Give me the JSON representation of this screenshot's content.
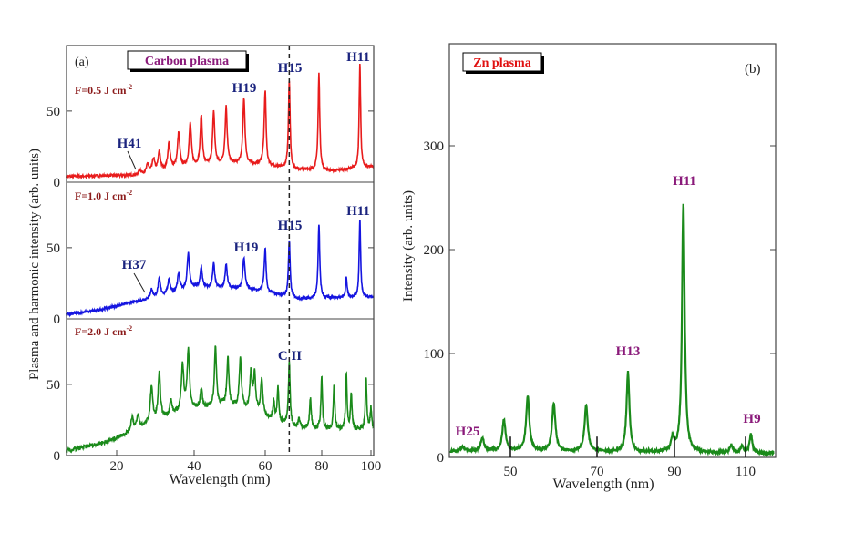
{
  "chart_data": [
    {
      "type": "line",
      "panel": "(a)",
      "title": "Carbon plasma",
      "xlabel": "Wavelength (nm)",
      "ylabel": "Plasma and harmonic intensity (arb. units)",
      "x_ticks": [
        20,
        40,
        60,
        80,
        100
      ],
      "y_ticks": [
        0,
        50
      ],
      "xlim": [
        7,
        101
      ],
      "ylim": [
        0,
        96
      ],
      "reference_line": {
        "x": 68.5,
        "style": "dashed"
      },
      "series": [
        {
          "name": "F=0.5 J cm-2",
          "label": "F=0.5 J cm",
          "sup": "-2",
          "color": "#e81c1c",
          "baseline": [
            [
              7,
              4
            ],
            [
              25,
              5
            ],
            [
              35,
              10
            ],
            [
              50,
              13
            ],
            [
              60,
              12
            ],
            [
              70,
              9
            ],
            [
              85,
              8
            ],
            [
              101,
              11
            ]
          ],
          "peaks": [
            [
              26,
              3
            ],
            [
              28,
              6
            ],
            [
              29.5,
              9
            ],
            [
              31,
              13
            ],
            [
              33.5,
              18
            ],
            [
              36,
              24
            ],
            [
              39,
              30
            ],
            [
              42,
              35
            ],
            [
              45.5,
              37
            ],
            [
              49,
              40
            ],
            [
              54,
              46
            ],
            [
              60,
              52
            ],
            [
              68.5,
              62
            ],
            [
              79,
              68
            ],
            [
              95.5,
              73
            ]
          ],
          "annotations": [
            {
              "text": "H41",
              "x": 25,
              "y": 6,
              "arrow": true
            },
            {
              "text": "H19",
              "x": 54
            },
            {
              "text": "H15",
              "x": 68.5
            },
            {
              "text": "H11",
              "x": 95.5
            }
          ]
        },
        {
          "name": "F=1.0 J cm-2",
          "label": "F=1.0 J cm",
          "sup": "-2",
          "color": "#1515e0",
          "baseline": [
            [
              7,
              3
            ],
            [
              15,
              6
            ],
            [
              28,
              14
            ],
            [
              40,
              22
            ],
            [
              55,
              21
            ],
            [
              62,
              18
            ],
            [
              72,
              14
            ],
            [
              85,
              15
            ],
            [
              101,
              15
            ]
          ],
          "peaks": [
            [
              29,
              6
            ],
            [
              31,
              12
            ],
            [
              33.5,
              10
            ],
            [
              36,
              12
            ],
            [
              38.5,
              25
            ],
            [
              42,
              14
            ],
            [
              45.5,
              17
            ],
            [
              49,
              17
            ],
            [
              54,
              22
            ],
            [
              60,
              30
            ],
            [
              68.5,
              40
            ],
            [
              79,
              52
            ],
            [
              90,
              14
            ],
            [
              95.5,
              55
            ]
          ],
          "annotations": [
            {
              "text": "H37",
              "x": 27,
              "y": 13,
              "arrow": true
            },
            {
              "text": "H19",
              "x": 54
            },
            {
              "text": "H15",
              "x": 68.5
            },
            {
              "text": "H11",
              "x": 95.5
            }
          ]
        },
        {
          "name": "F=2.0 J cm-2",
          "label": "F=2.0 J cm",
          "sup": "-2",
          "color": "#1a8a1a",
          "baseline": [
            [
              7,
              3
            ],
            [
              18,
              10
            ],
            [
              28,
              22
            ],
            [
              38,
              32
            ],
            [
              48,
              35
            ],
            [
              56,
              32
            ],
            [
              62,
              25
            ],
            [
              70,
              20
            ],
            [
              80,
              18
            ],
            [
              101,
              18
            ]
          ],
          "peaks": [
            [
              24,
              10
            ],
            [
              25.5,
              9
            ],
            [
              29,
              26
            ],
            [
              31,
              32
            ],
            [
              34,
              10
            ],
            [
              37,
              33
            ],
            [
              38.5,
              42
            ],
            [
              42,
              13
            ],
            [
              46,
              41
            ],
            [
              49.5,
              34
            ],
            [
              53,
              36
            ],
            [
              56,
              26
            ],
            [
              57,
              25
            ],
            [
              59,
              25
            ],
            [
              63,
              14
            ],
            [
              64.5,
              24
            ],
            [
              68.5,
              44
            ],
            [
              72,
              6
            ],
            [
              76,
              21
            ],
            [
              80,
              36
            ],
            [
              85,
              32
            ],
            [
              90,
              38
            ],
            [
              92,
              25
            ],
            [
              98,
              37
            ],
            [
              100,
              15
            ]
          ],
          "annotations": [
            {
              "text": "C II",
              "x": 68.5
            }
          ]
        }
      ]
    },
    {
      "type": "line",
      "panel": "(b)",
      "title": "Zn plasma",
      "xlabel": "Wavelength (nm)",
      "ylabel": "Intensity (arb. units)",
      "x_ticks": [
        50,
        70,
        90,
        110
      ],
      "y_ticks": [
        0,
        100,
        200,
        300
      ],
      "xlim": [
        36,
        118
      ],
      "ylim": [
        0,
        397
      ],
      "series": [
        {
          "name": "Zn plasma",
          "color": "#1a8a1a",
          "baseline": [
            [
              36,
              6
            ],
            [
              60,
              6
            ],
            [
              80,
              5
            ],
            [
              118,
              4
            ]
          ],
          "peaks": [
            [
              39,
              4
            ],
            [
              43.5,
              13
            ],
            [
              48.5,
              30
            ],
            [
              54,
              52
            ],
            [
              60,
              46
            ],
            [
              67.5,
              44
            ],
            [
              78,
              77
            ],
            [
              89.5,
              12
            ],
            [
              92.5,
              240
            ],
            [
              106,
              8
            ],
            [
              109,
              6
            ],
            [
              111.5,
              18
            ]
          ],
          "annotations": [
            {
              "text": "H25",
              "x": 39
            },
            {
              "text": "H13",
              "x": 78
            },
            {
              "text": "H11",
              "x": 92.5
            },
            {
              "text": "H9",
              "x": 111.5
            }
          ]
        }
      ],
      "marker_lines": [
        50,
        70,
        90,
        110
      ]
    }
  ]
}
